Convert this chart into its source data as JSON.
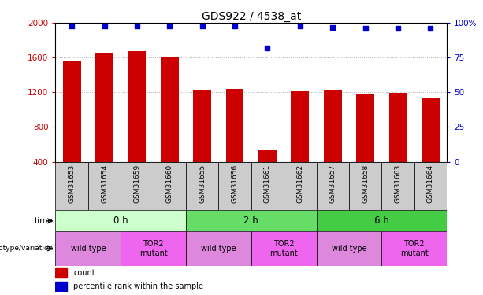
{
  "title": "GDS922 / 4538_at",
  "samples": [
    "GSM31653",
    "GSM31654",
    "GSM31659",
    "GSM31660",
    "GSM31655",
    "GSM31656",
    "GSM31661",
    "GSM31662",
    "GSM31657",
    "GSM31658",
    "GSM31663",
    "GSM31664"
  ],
  "counts": [
    1570,
    1660,
    1680,
    1610,
    1230,
    1240,
    530,
    1215,
    1230,
    1185,
    1195,
    1130
  ],
  "percentile_ranks": [
    98,
    98,
    98,
    98,
    98,
    98,
    82,
    98,
    97,
    96,
    96,
    96
  ],
  "ylim_left": [
    400,
    2000
  ],
  "ylim_right": [
    0,
    100
  ],
  "yticks_left": [
    400,
    800,
    1200,
    1600,
    2000
  ],
  "yticks_right": [
    0,
    25,
    50,
    75,
    100
  ],
  "bar_color": "#cc0000",
  "dot_color": "#0000cc",
  "grid_color": "#aaaaaa",
  "time_groups": [
    {
      "label": "0 h",
      "start": 0,
      "end": 4,
      "color": "#ccffcc"
    },
    {
      "label": "2 h",
      "start": 4,
      "end": 8,
      "color": "#66dd66"
    },
    {
      "label": "6 h",
      "start": 8,
      "end": 12,
      "color": "#44cc44"
    }
  ],
  "geno_groups": [
    {
      "label": "wild type",
      "start": 0,
      "end": 2,
      "color": "#dd88dd"
    },
    {
      "label": "TOR2\nmutant",
      "start": 2,
      "end": 4,
      "color": "#ee66ee"
    },
    {
      "label": "wild type",
      "start": 4,
      "end": 6,
      "color": "#dd88dd"
    },
    {
      "label": "TOR2\nmutant",
      "start": 6,
      "end": 8,
      "color": "#ee66ee"
    },
    {
      "label": "wild type",
      "start": 8,
      "end": 10,
      "color": "#dd88dd"
    },
    {
      "label": "TOR2\nmutant",
      "start": 10,
      "end": 12,
      "color": "#ee66ee"
    }
  ],
  "bar_color_hex": "#cc0000",
  "dot_color_hex": "#0000cc",
  "left_tick_color": "#cc0000",
  "right_tick_color": "#0000cc",
  "sample_bg_color": "#cccccc",
  "fig_width": 6.13,
  "fig_height": 3.75,
  "dpi": 100
}
